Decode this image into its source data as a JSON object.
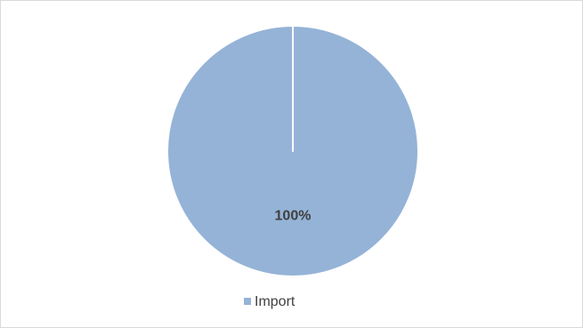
{
  "chart_data": {
    "type": "pie",
    "categories": [
      "Import"
    ],
    "values": [
      100
    ],
    "value_labels": [
      "100%"
    ],
    "colors": [
      "#95b3d7"
    ],
    "legend": "bottom"
  }
}
